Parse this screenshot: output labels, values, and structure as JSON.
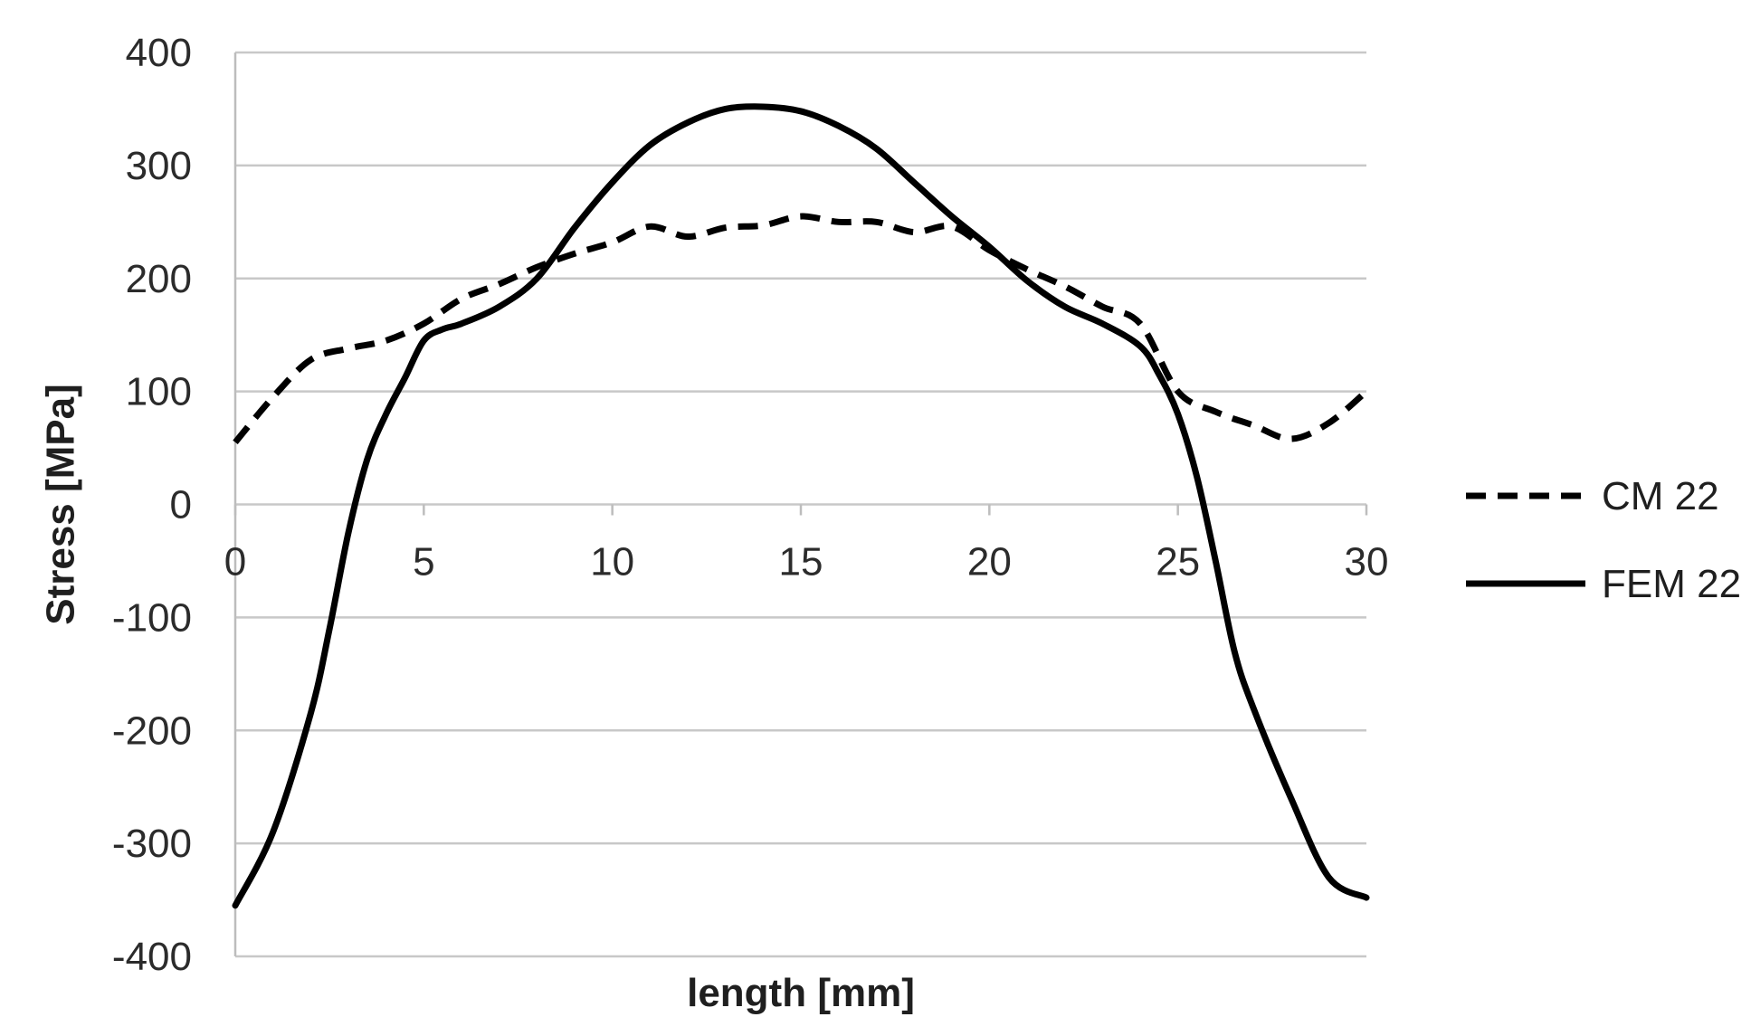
{
  "chart_data": {
    "type": "line",
    "title": "",
    "xlabel": "length [mm]",
    "ylabel": "Stress [MPa]",
    "xlim": [
      0,
      30
    ],
    "ylim": [
      -400,
      400
    ],
    "x_ticks": [
      "0",
      "5",
      "10",
      "15",
      "20",
      "25",
      "30"
    ],
    "y_ticks": [
      "400",
      "300",
      "200",
      "100",
      "0",
      "-100",
      "-200",
      "-300",
      "-400"
    ],
    "grid": "horizontal",
    "legend_position": "right",
    "series": [
      {
        "name": "CM 22",
        "style": "dashed",
        "color": "#000000",
        "x": [
          0,
          1,
          2,
          3,
          4,
          5,
          6,
          7,
          8,
          9,
          10,
          11,
          12,
          13,
          14,
          15,
          16,
          17,
          18,
          19,
          20,
          21,
          22,
          23,
          24,
          25,
          26,
          27,
          28,
          29,
          30
        ],
        "y": [
          55,
          95,
          128,
          138,
          145,
          160,
          182,
          195,
          210,
          222,
          232,
          246,
          237,
          245,
          247,
          255,
          250,
          250,
          241,
          246,
          225,
          208,
          193,
          175,
          160,
          100,
          82,
          70,
          58,
          72,
          100
        ]
      },
      {
        "name": "FEM 22",
        "style": "solid",
        "color": "#000000",
        "x": [
          0,
          1,
          2,
          2.5,
          3,
          3.5,
          4,
          4.5,
          5,
          5.5,
          6,
          7,
          8,
          9,
          10,
          11,
          12,
          13,
          14,
          15,
          16,
          17,
          18,
          19,
          20,
          21,
          22,
          23,
          24,
          24.5,
          25,
          25.5,
          26,
          26.5,
          27,
          28,
          29,
          30
        ],
        "y": [
          -355,
          -290,
          -185,
          -110,
          -25,
          40,
          80,
          112,
          145,
          155,
          160,
          175,
          200,
          245,
          285,
          318,
          338,
          350,
          352,
          348,
          335,
          315,
          285,
          255,
          228,
          198,
          175,
          160,
          140,
          115,
          80,
          25,
          -50,
          -130,
          -180,
          -260,
          -330,
          -348
        ]
      }
    ]
  }
}
